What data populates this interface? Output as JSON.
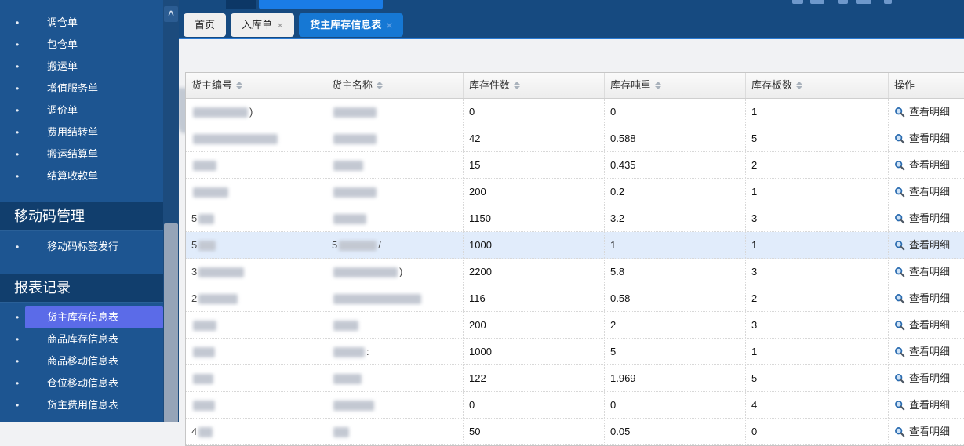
{
  "colors": {
    "sidebar_bg": "#1d5591",
    "section_band_bg": "#113e6d",
    "selected_item_bg": "#5b6be8",
    "tabbar_bg": "#164a80",
    "active_tab_bg": "#1678d4",
    "inactive_tab_bg": "#efefef",
    "highlight_row_bg": "#e1ecfb",
    "magnifier_blue": "#2b6cb0"
  },
  "sidebar": {
    "scroll_up_icon": "^",
    "groups": [
      {
        "header": null,
        "items": [
          {
            "label": "出库单",
            "partial": true
          },
          {
            "label": "调仓单"
          },
          {
            "label": "包仓单"
          },
          {
            "label": "搬运单"
          },
          {
            "label": "增值服务单"
          },
          {
            "label": "调价单"
          },
          {
            "label": "费用结转单"
          },
          {
            "label": "搬运结算单"
          },
          {
            "label": "结算收款单"
          }
        ]
      },
      {
        "header": "移动码管理",
        "items": [
          {
            "label": "移动码标签发行"
          }
        ]
      },
      {
        "header": "报表记录",
        "items": [
          {
            "label": "货主库存信息表",
            "selected": true
          },
          {
            "label": "商品库存信息表"
          },
          {
            "label": "商品移动信息表"
          },
          {
            "label": "仓位移动信息表"
          },
          {
            "label": "货主费用信息表"
          }
        ]
      }
    ]
  },
  "tabs": [
    {
      "label": "首页",
      "closable": false,
      "active": false
    },
    {
      "label": "入库单",
      "closable": true,
      "active": false
    },
    {
      "label": "货主库存信息表",
      "closable": true,
      "active": true
    }
  ],
  "close_icon": "×",
  "table": {
    "columns": [
      {
        "label": "货主编号",
        "sortable": true
      },
      {
        "label": "货主名称",
        "sortable": true
      },
      {
        "label": "库存件数",
        "sortable": true
      },
      {
        "label": "库存吨重",
        "sortable": true
      },
      {
        "label": "库存板数",
        "sortable": true
      },
      {
        "label": "操作",
        "sortable": false
      }
    ],
    "action_label": "查看明细",
    "rows": [
      {
        "id": {
          "pre": "",
          "blur": 70,
          "suf": ")"
        },
        "name": {
          "pre": "",
          "blur": 55,
          "suf": ""
        },
        "qty": "0",
        "tons": "0",
        "pallets": "1",
        "highlight": false
      },
      {
        "id": {
          "pre": "",
          "blur": 108,
          "suf": ""
        },
        "name": {
          "pre": "",
          "blur": 55,
          "suf": ""
        },
        "qty": "42",
        "tons": "0.588",
        "pallets": "5",
        "highlight": false
      },
      {
        "id": {
          "pre": "",
          "blur": 30,
          "suf": ""
        },
        "name": {
          "pre": "",
          "blur": 38,
          "suf": ""
        },
        "qty": "15",
        "tons": "0.435",
        "pallets": "2",
        "highlight": false
      },
      {
        "id": {
          "pre": "",
          "blur": 45,
          "suf": ""
        },
        "name": {
          "pre": "",
          "blur": 55,
          "suf": ""
        },
        "qty": "200",
        "tons": "0.2",
        "pallets": "1",
        "highlight": false
      },
      {
        "id": {
          "pre": "5",
          "blur": 20,
          "suf": ""
        },
        "name": {
          "pre": "",
          "blur": 42,
          "suf": ""
        },
        "qty": "1150",
        "tons": "3.2",
        "pallets": "3",
        "highlight": false
      },
      {
        "id": {
          "pre": "5",
          "blur": 22,
          "suf": ""
        },
        "name": {
          "pre": "5",
          "blur": 48,
          "suf": "/"
        },
        "qty": "1000",
        "tons": "1",
        "pallets": "1",
        "highlight": true
      },
      {
        "id": {
          "pre": "3",
          "blur": 58,
          "suf": ""
        },
        "name": {
          "pre": "",
          "blur": 82,
          "suf": ")"
        },
        "qty": "2200",
        "tons": "5.8",
        "pallets": "3",
        "highlight": false
      },
      {
        "id": {
          "pre": "2",
          "blur": 50,
          "suf": ""
        },
        "name": {
          "pre": "",
          "blur": 112,
          "suf": ""
        },
        "qty": "116",
        "tons": "0.58",
        "pallets": "2",
        "highlight": false
      },
      {
        "id": {
          "pre": "",
          "blur": 30,
          "suf": ""
        },
        "name": {
          "pre": "",
          "blur": 32,
          "suf": ""
        },
        "qty": "200",
        "tons": "2",
        "pallets": "3",
        "highlight": false
      },
      {
        "id": {
          "pre": "",
          "blur": 28,
          "suf": ""
        },
        "name": {
          "pre": "",
          "blur": 40,
          "suf": ":"
        },
        "qty": "1000",
        "tons": "5",
        "pallets": "1",
        "highlight": false
      },
      {
        "id": {
          "pre": "",
          "blur": 26,
          "suf": ""
        },
        "name": {
          "pre": "",
          "blur": 36,
          "suf": ""
        },
        "qty": "122",
        "tons": "1.969",
        "pallets": "5",
        "highlight": false
      },
      {
        "id": {
          "pre": "",
          "blur": 28,
          "suf": ""
        },
        "name": {
          "pre": "",
          "blur": 52,
          "suf": ""
        },
        "qty": "0",
        "tons": "0",
        "pallets": "4",
        "highlight": false
      },
      {
        "id": {
          "pre": "4",
          "blur": 18,
          "suf": ""
        },
        "name": {
          "pre": "",
          "blur": 20,
          "suf": ""
        },
        "qty": "50",
        "tons": "0.05",
        "pallets": "0",
        "highlight": false
      }
    ]
  }
}
